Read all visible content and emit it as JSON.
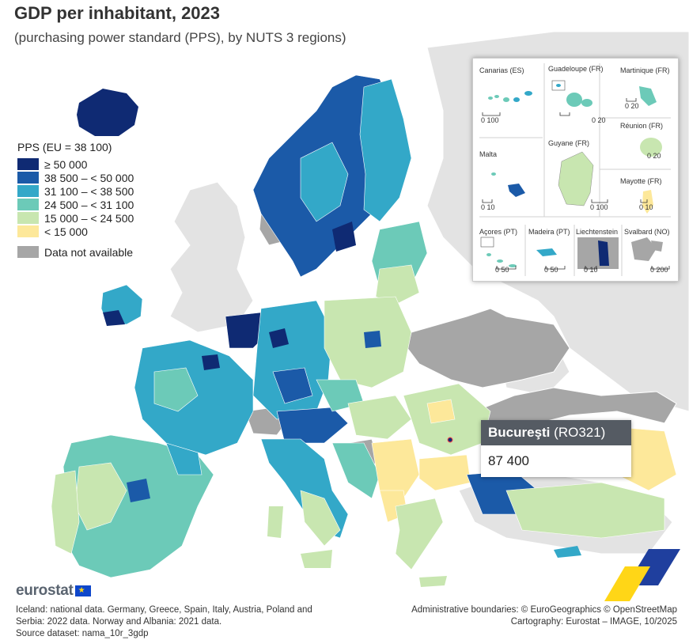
{
  "header": {
    "title": "GDP per inhabitant, 2023",
    "subtitle": "(purchasing power standard (PPS), by NUTS 3 regions)"
  },
  "legend": {
    "title": "PPS (EU = 38 100)",
    "classes": [
      {
        "label": "≥ 50 000",
        "color": "#0f2a73"
      },
      {
        "label": "38 500 – < 50 000",
        "color": "#1b5aa8"
      },
      {
        "label": "31 100 – < 38 500",
        "color": "#33a8c8"
      },
      {
        "label": "24 500 – < 31 100",
        "color": "#6ccab8"
      },
      {
        "label": "15 000 – < 24 500",
        "color": "#c8e6b0"
      },
      {
        "label": "< 15 000",
        "color": "#fde89a"
      }
    ],
    "na_label": "Data not available",
    "na_color": "#a6a6a6"
  },
  "insets": {
    "canarias": {
      "name": "Canarias (ES)",
      "scale": "0  100"
    },
    "guadeloupe": {
      "name": "Guadeloupe (FR)",
      "scale": "0  20"
    },
    "martinique": {
      "name": "Martinique (FR)",
      "scale": "0  20"
    },
    "reunion": {
      "name": "Réunion (FR)",
      "scale": "0  20"
    },
    "malta": {
      "name": "Malta",
      "scale": "0  10"
    },
    "guyane": {
      "name": "Guyane (FR)",
      "scale": "0  100"
    },
    "mayotte": {
      "name": "Mayotte (FR)",
      "scale": "0 10"
    },
    "acores": {
      "name": "Açores (PT)",
      "scale": "0  50"
    },
    "madeira": {
      "name": "Madeira (PT)",
      "scale": "0  50"
    },
    "liechtenstein": {
      "name": "Liechtenstein",
      "scale": "0  10"
    },
    "svalbard": {
      "name": "Svalbard (NO)",
      "scale": "0  200"
    }
  },
  "tooltip": {
    "region": "Bucureşti",
    "code": "(RO321)",
    "value": "87 400"
  },
  "footer": {
    "brand": "eurostat",
    "note_1": "Iceland: national data. Germany, Greece, Spain, Italy, Austria, Poland and",
    "note_2": "Serbia: 2022 data. Norway and Albania: 2021 data.",
    "note_3": "Source dataset: nama_10r_3gdp",
    "credit_1": "Administrative boundaries: © EuroGeographics © OpenStreetMap",
    "credit_2": "Cartography: Eurostat – IMAGE, 10/2025"
  }
}
